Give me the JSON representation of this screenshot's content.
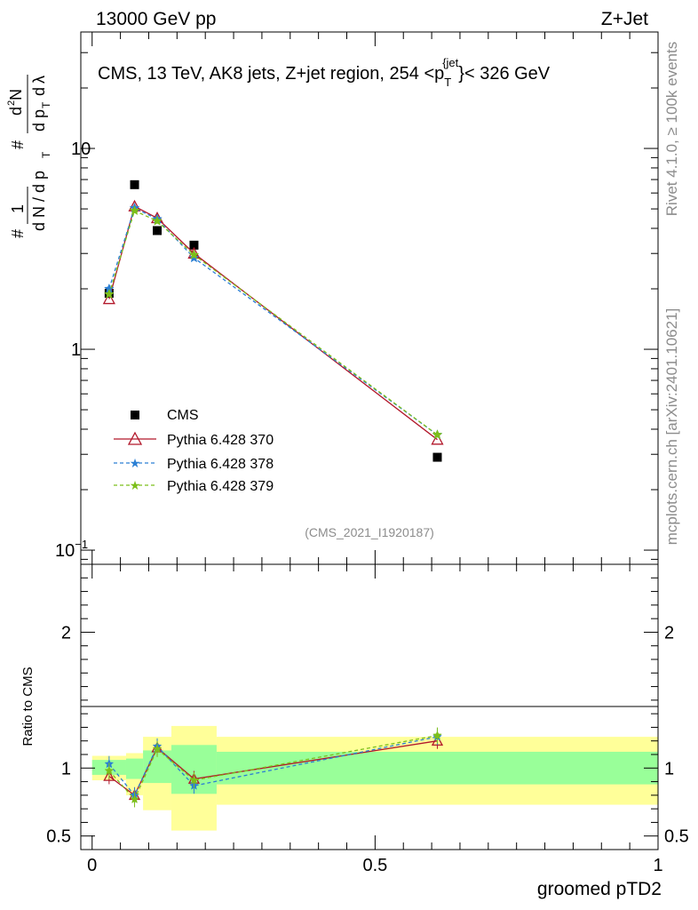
{
  "header": {
    "left": "13000 GeV pp",
    "right": "Z+Jet"
  },
  "side_labels": {
    "rivet": "Rivet 4.1.0, ≥ 100k events",
    "mcplots": "mcplots.cern.ch [arXiv:2401.10621]"
  },
  "chart_data": [
    {
      "type": "scatter",
      "panel": "main",
      "title": "CMS, 13 TeV, AK8 jets, Z+jet region, 254 <p",
      "title_sub": "T",
      "title_sup": "{jet",
      "title_end": "}< 326 GeV",
      "ylabel": "#   1  / dN / d p_T   # d²N / d p_T dλ",
      "yscale": "log",
      "ylim": [
        0.085,
        38
      ],
      "xlim": [
        -0.02,
        1.0
      ],
      "yticks": [
        {
          "value": 0.1,
          "base": "10",
          "exp": "−1"
        },
        {
          "value": 1,
          "base": "1",
          "exp": ""
        },
        {
          "value": 10,
          "base": "10",
          "exp": ""
        }
      ],
      "watermark": "(CMS_2021_I1920187)",
      "x": [
        0.03,
        0.075,
        0.115,
        0.18,
        0.61
      ],
      "series": [
        {
          "name": "CMS",
          "values": [
            1.9,
            6.6,
            3.9,
            3.3,
            0.29
          ],
          "color": "#000000",
          "style": "square"
        },
        {
          "name": "Pythia 6.428 370",
          "values": [
            1.78,
            5.15,
            4.5,
            3.0,
            0.355
          ],
          "color": "#b2182b",
          "style": "triangle"
        },
        {
          "name": "Pythia 6.428 378",
          "values": [
            2.0,
            5.05,
            4.45,
            2.85,
            0.375
          ],
          "color": "#2a7fd4",
          "style": "star"
        },
        {
          "name": "Pythia 6.428 379",
          "values": [
            1.88,
            4.9,
            4.35,
            2.95,
            0.375
          ],
          "color": "#7cbf1a",
          "style": "star"
        }
      ]
    },
    {
      "type": "line",
      "panel": "ratio",
      "ylabel": "Ratio to CMS",
      "xlabel": "groomed pTD2",
      "ylim": [
        0.4,
        2.5
      ],
      "xlim": [
        -0.02,
        1.0
      ],
      "yticks": [
        0.5,
        1,
        2
      ],
      "xticks": [
        0,
        0.5,
        1
      ],
      "x": [
        0.03,
        0.075,
        0.115,
        0.18,
        0.61
      ],
      "bins": [
        {
          "lo": 0.0,
          "hi": 0.06,
          "inner": [
            0.95,
            1.06
          ],
          "outer": [
            0.91,
            1.09
          ]
        },
        {
          "lo": 0.06,
          "hi": 0.09,
          "inner": [
            0.92,
            1.07
          ],
          "outer": [
            0.8,
            1.11
          ]
        },
        {
          "lo": 0.09,
          "hi": 0.14,
          "inner": [
            0.89,
            1.13
          ],
          "outer": [
            0.69,
            1.23
          ]
        },
        {
          "lo": 0.14,
          "hi": 0.22,
          "inner": [
            0.81,
            1.17
          ],
          "outer": [
            0.54,
            1.31
          ]
        },
        {
          "lo": 0.22,
          "hi": 1.0,
          "inner": [
            0.88,
            1.12
          ],
          "outer": [
            0.73,
            1.23
          ]
        }
      ],
      "series": [
        {
          "name": "Pythia 6.428 370",
          "values": [
            0.94,
            0.8,
            1.15,
            0.92,
            1.2
          ],
          "color": "#b2182b"
        },
        {
          "name": "Pythia 6.428 378",
          "values": [
            1.03,
            0.8,
            1.16,
            0.87,
            1.23
          ],
          "color": "#2a7fd4"
        },
        {
          "name": "Pythia 6.428 379",
          "values": [
            0.98,
            0.77,
            1.14,
            0.91,
            1.24
          ],
          "color": "#7cbf1a"
        }
      ]
    }
  ]
}
